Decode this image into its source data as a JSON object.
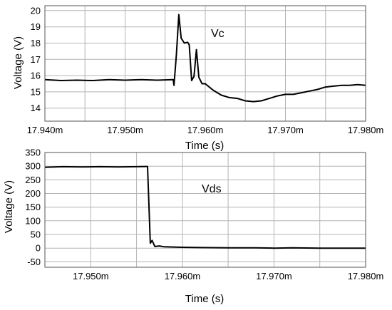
{
  "chart_data": [
    {
      "type": "line",
      "xlabel": "Time (s)",
      "ylabel": "Voltage (V)",
      "annotation": "Vc",
      "xlim": [
        17.94,
        17.98
      ],
      "ylim": [
        13.2,
        20.3
      ],
      "grid": true,
      "x_ticks": [
        17.94,
        17.945,
        17.95,
        17.955,
        17.96,
        17.965,
        17.97,
        17.975,
        17.98
      ],
      "x_tick_labels": [
        "17.940m",
        "17.950m",
        "17.960m",
        "17.970m",
        "17.980m"
      ],
      "x_tick_label_values": [
        17.94,
        17.95,
        17.96,
        17.97,
        17.98
      ],
      "y_ticks": [
        14,
        15,
        16,
        17,
        18,
        19,
        20
      ],
      "y_tick_labels": [
        "14",
        "15",
        "16",
        "17",
        "18",
        "19",
        "20"
      ],
      "series": [
        {
          "x": [
            17.94,
            17.942,
            17.944,
            17.946,
            17.948,
            17.95,
            17.952,
            17.954,
            17.956,
            17.9561,
            17.9564,
            17.9567,
            17.957,
            17.9574,
            17.9578,
            17.958,
            17.9583,
            17.9586,
            17.9589,
            17.9592,
            17.9596,
            17.96,
            17.9605,
            17.961,
            17.962,
            17.963,
            17.964,
            17.965,
            17.966,
            17.967,
            17.968,
            17.969,
            17.97,
            17.971,
            17.972,
            17.973,
            17.974,
            17.975,
            17.976,
            17.977,
            17.978,
            17.979,
            17.98
          ],
          "values": [
            15.75,
            15.7,
            15.72,
            15.7,
            15.75,
            15.72,
            15.75,
            15.72,
            15.75,
            15.4,
            17.3,
            19.75,
            18.3,
            18.0,
            18.05,
            17.9,
            15.7,
            15.95,
            17.6,
            15.9,
            15.5,
            15.5,
            15.3,
            15.1,
            14.8,
            14.65,
            14.6,
            14.45,
            14.4,
            14.45,
            14.6,
            14.75,
            14.85,
            14.85,
            14.95,
            15.05,
            15.15,
            15.3,
            15.35,
            15.4,
            15.4,
            15.45,
            15.4
          ]
        }
      ]
    },
    {
      "type": "line",
      "xlabel": "Time (s)",
      "ylabel": "Voltage (V)",
      "annotation": "Vds",
      "xlim": [
        17.945,
        17.98
      ],
      "ylim": [
        -70,
        350
      ],
      "grid": true,
      "x_ticks": [
        17.945,
        17.95,
        17.955,
        17.96,
        17.965,
        17.97,
        17.975,
        17.98
      ],
      "x_tick_labels": [
        "17.950m",
        "17.960m",
        "17.970m",
        "17.980m"
      ],
      "x_tick_label_values": [
        17.95,
        17.96,
        17.97,
        17.98
      ],
      "y_ticks": [
        -50,
        0,
        50,
        100,
        150,
        200,
        250,
        300,
        350
      ],
      "y_tick_labels": [
        "-50",
        "0",
        "50",
        "100",
        "150",
        "200",
        "250",
        "300",
        "350"
      ],
      "series": [
        {
          "x": [
            17.945,
            17.947,
            17.949,
            17.951,
            17.953,
            17.955,
            17.956,
            17.9562,
            17.9565,
            17.9567,
            17.957,
            17.9575,
            17.958,
            17.96,
            17.962,
            17.965,
            17.968,
            17.97,
            17.972,
            17.975,
            17.978,
            17.98
          ],
          "values": [
            296,
            298,
            297,
            298,
            297,
            298,
            299,
            299,
            18,
            28,
            6,
            8,
            5,
            3,
            2,
            1,
            1,
            0,
            1,
            0,
            0,
            0
          ]
        }
      ]
    }
  ]
}
